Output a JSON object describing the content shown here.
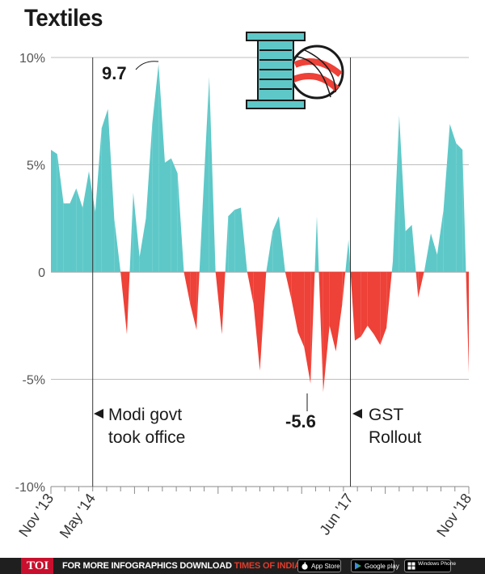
{
  "title": "Textiles",
  "footer": {
    "logo": "TOI",
    "message_prefix": "FOR MORE  INFOGRAPHICS DOWNLOAD ",
    "message_app": "TIMES OF INDIA  APP",
    "badges": [
      "App Store",
      "Google play",
      "Windows Phone"
    ]
  },
  "chart_data": {
    "type": "area",
    "title": "Textiles",
    "ylim": [
      -10,
      10
    ],
    "yticks": [
      10,
      5,
      0,
      -5,
      -10
    ],
    "ytick_labels": [
      "10%",
      "5%",
      "0",
      "-5%",
      "-10%"
    ],
    "x_start": "Nov '13",
    "x_end": "Nov '18",
    "xtick_labels": [
      {
        "label": "Nov '13",
        "month_index": 0
      },
      {
        "label": "May '14",
        "month_index": 6
      },
      {
        "label": "Jun '17",
        "month_index": 43
      },
      {
        "label": "Nov '18",
        "month_index": 60
      }
    ],
    "positive_color": "#5ec8c8",
    "negative_color": "#ee4137",
    "values": [
      5.7,
      5.5,
      3.2,
      3.2,
      3.9,
      3.0,
      4.7,
      2.8,
      6.7,
      7.6,
      2.5,
      0.0,
      -2.9,
      3.7,
      0.7,
      2.5,
      6.9,
      9.7,
      5.1,
      5.3,
      4.6,
      0.0,
      -1.5,
      -2.7,
      3.3,
      9.1,
      0.0,
      -2.9,
      2.6,
      2.9,
      3.0,
      0.0,
      -1.5,
      -4.6,
      0.0,
      1.9,
      2.6,
      0.0,
      -1.3,
      -2.8,
      -3.5,
      -5.2,
      2.6,
      -5.6,
      -2.5,
      -3.7,
      -1.5,
      1.5,
      -3.2,
      -3.0,
      -2.5,
      -2.9,
      -3.4,
      -2.6,
      0.5,
      7.3,
      1.9,
      2.2,
      -1.2,
      0.1,
      1.8,
      0.8,
      2.9,
      6.9,
      6.0,
      5.7,
      -4.7
    ]
  },
  "annotations": {
    "peak_value": "9.7",
    "trough_value": "-5.6",
    "modi_line1": "Modi govt",
    "modi_line2": "took office",
    "gst_line1": "GST",
    "gst_line2": "Rollout"
  }
}
